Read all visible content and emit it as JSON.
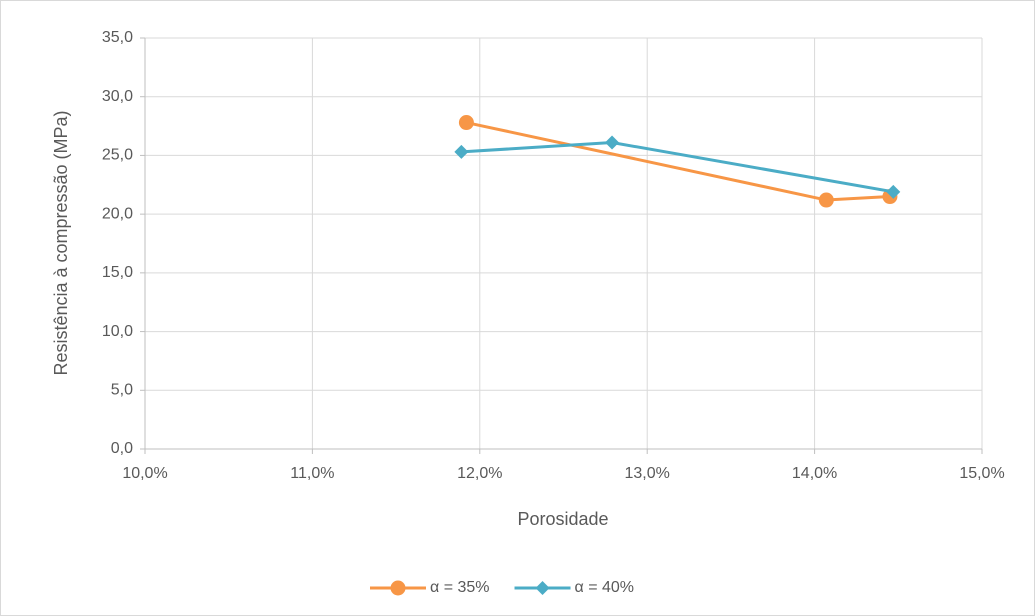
{
  "chart_data": {
    "type": "line",
    "xlabel": "Porosidade",
    "ylabel": "Resistência à compressão (MPa)",
    "xlim": [
      10,
      15
    ],
    "xticks": [
      {
        "value": 10,
        "label": "10,0%"
      },
      {
        "value": 11,
        "label": "11,0%"
      },
      {
        "value": 12,
        "label": "12,0%"
      },
      {
        "value": 13,
        "label": "13,0%"
      },
      {
        "value": 14,
        "label": "14,0%"
      },
      {
        "value": 15,
        "label": "15,0%"
      }
    ],
    "ylim": [
      0,
      35
    ],
    "yticks": [
      {
        "value": 0,
        "label": "0,0"
      },
      {
        "value": 5,
        "label": "5,0"
      },
      {
        "value": 10,
        "label": "10,0"
      },
      {
        "value": 15,
        "label": "15,0"
      },
      {
        "value": 20,
        "label": "20,0"
      },
      {
        "value": 25,
        "label": "25,0"
      },
      {
        "value": 30,
        "label": "30,0"
      },
      {
        "value": 35,
        "label": "35,0"
      }
    ],
    "grid": true,
    "legend": "bottom",
    "series": [
      {
        "name": "α = 35%",
        "color": "#f79646",
        "marker": "circle",
        "x": [
          11.92,
          14.07,
          14.45
        ],
        "values": [
          27.8,
          21.2,
          21.5
        ]
      },
      {
        "name": "α = 40%",
        "color": "#4bacc6",
        "marker": "diamond",
        "x": [
          11.89,
          12.79,
          14.47
        ],
        "values": [
          25.3,
          26.1,
          21.9
        ]
      }
    ]
  }
}
